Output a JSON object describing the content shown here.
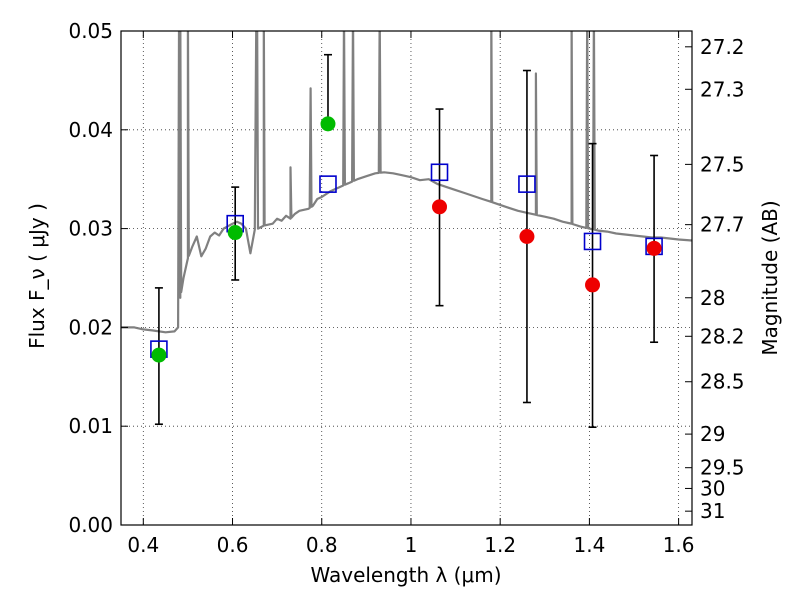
{
  "chart_data": {
    "type": "scatter",
    "xlabel": "Wavelength  λ (μm)",
    "ylabel": "Flux  F_ν  ( μJy )",
    "ylabel_right": "Magnitude (AB)",
    "xlim": [
      0.35,
      1.63
    ],
    "ylim": [
      0.0,
      0.05
    ],
    "grid": true,
    "x_ticks": [
      0.4,
      0.6,
      0.8,
      1.0,
      1.2,
      1.4,
      1.6
    ],
    "x_tick_labels": [
      "0.4",
      "0.6",
      "0.8",
      "1",
      "1.2",
      "1.4",
      "1.6"
    ],
    "y_ticks": [
      0.0,
      0.01,
      0.02,
      0.03,
      0.04,
      0.05
    ],
    "y_tick_labels": [
      "0.00",
      "0.01",
      "0.02",
      "0.03",
      "0.04",
      "0.05"
    ],
    "right_ticks": [
      {
        "label": "27.2",
        "flux": 0.0484
      },
      {
        "label": "27.3",
        "flux": 0.0441
      },
      {
        "label": "27.5",
        "flux": 0.0365
      },
      {
        "label": "27.7",
        "flux": 0.0304
      },
      {
        "label": "28",
        "flux": 0.023
      },
      {
        "label": "28.2",
        "flux": 0.0191
      },
      {
        "label": "28.5",
        "flux": 0.0145
      },
      {
        "label": "29",
        "flux": 0.0092
      },
      {
        "label": "29.5",
        "flux": 0.0058
      },
      {
        "label": "30",
        "flux": 0.0037
      },
      {
        "label": "31",
        "flux": 0.0014
      }
    ],
    "series": [
      {
        "kind": "model_spectrum",
        "color": "#808080",
        "points": [
          [
            0.35,
            0.02
          ],
          [
            0.38,
            0.02
          ],
          [
            0.4,
            0.0198
          ],
          [
            0.42,
            0.0197
          ],
          [
            0.45,
            0.0195
          ],
          [
            0.47,
            0.0196
          ],
          [
            0.478,
            0.02
          ],
          [
            0.48,
            0.05
          ],
          [
            0.483,
            0.023
          ],
          [
            0.49,
            0.025
          ],
          [
            0.5,
            0.027
          ],
          [
            0.51,
            0.0282
          ],
          [
            0.52,
            0.0292
          ],
          [
            0.53,
            0.0272
          ],
          [
            0.54,
            0.028
          ],
          [
            0.55,
            0.0292
          ],
          [
            0.56,
            0.0296
          ],
          [
            0.57,
            0.0293
          ],
          [
            0.58,
            0.03
          ],
          [
            0.6,
            0.0305
          ],
          [
            0.61,
            0.0307
          ],
          [
            0.62,
            0.0305
          ],
          [
            0.63,
            0.03
          ],
          [
            0.64,
            0.0275
          ],
          [
            0.65,
            0.0299
          ],
          [
            0.653,
            0.05
          ],
          [
            0.657,
            0.03
          ],
          [
            0.67,
            0.0303
          ],
          [
            0.69,
            0.0305
          ],
          [
            0.7,
            0.031
          ],
          [
            0.71,
            0.0308
          ],
          [
            0.72,
            0.0313
          ],
          [
            0.73,
            0.031
          ],
          [
            0.74,
            0.0315
          ],
          [
            0.75,
            0.0318
          ],
          [
            0.77,
            0.032
          ],
          [
            0.78,
            0.0323
          ],
          [
            0.79,
            0.033
          ],
          [
            0.8,
            0.0332
          ],
          [
            0.82,
            0.0338
          ],
          [
            0.84,
            0.0342
          ],
          [
            0.86,
            0.0346
          ],
          [
            0.88,
            0.035
          ],
          [
            0.9,
            0.0353
          ],
          [
            0.92,
            0.0356
          ],
          [
            0.94,
            0.0357
          ],
          [
            0.96,
            0.0356
          ],
          [
            0.98,
            0.0354
          ],
          [
            1.0,
            0.0352
          ],
          [
            1.02,
            0.0349
          ],
          [
            1.04,
            0.035
          ],
          [
            1.06,
            0.0345
          ],
          [
            1.08,
            0.0342
          ],
          [
            1.1,
            0.0339
          ],
          [
            1.12,
            0.0336
          ],
          [
            1.14,
            0.0333
          ],
          [
            1.16,
            0.033
          ],
          [
            1.18,
            0.0327
          ],
          [
            1.2,
            0.0324
          ],
          [
            1.22,
            0.0321
          ],
          [
            1.24,
            0.0318
          ],
          [
            1.26,
            0.0316
          ],
          [
            1.28,
            0.0314
          ],
          [
            1.3,
            0.0312
          ],
          [
            1.32,
            0.031
          ],
          [
            1.34,
            0.0307
          ],
          [
            1.36,
            0.0305
          ],
          [
            1.38,
            0.0302
          ],
          [
            1.4,
            0.03
          ],
          [
            1.42,
            0.0298
          ],
          [
            1.44,
            0.0297
          ],
          [
            1.46,
            0.0295
          ],
          [
            1.48,
            0.0294
          ],
          [
            1.5,
            0.0293
          ],
          [
            1.52,
            0.0292
          ],
          [
            1.54,
            0.0291
          ],
          [
            1.56,
            0.0291
          ],
          [
            1.58,
            0.029
          ],
          [
            1.6,
            0.0289
          ],
          [
            1.63,
            0.0288
          ]
        ],
        "emission_lines": [
          {
            "x": 0.483,
            "peak": 0.05
          },
          {
            "x": 0.5,
            "peak": 0.05
          },
          {
            "x": 0.655,
            "peak": 0.05
          },
          {
            "x": 0.67,
            "peak": 0.05
          },
          {
            "x": 0.73,
            "peak": 0.0342
          },
          {
            "x": 0.775,
            "peak": 0.0422
          },
          {
            "x": 0.85,
            "peak": 0.05
          },
          {
            "x": 0.87,
            "peak": 0.05
          },
          {
            "x": 0.93,
            "peak": 0.05
          },
          {
            "x": 1.18,
            "peak": 0.05
          },
          {
            "x": 1.28,
            "peak": 0.0437
          },
          {
            "x": 1.36,
            "peak": 0.05
          },
          {
            "x": 1.395,
            "peak": 0.05
          },
          {
            "x": 1.41,
            "peak": 0.05
          }
        ]
      },
      {
        "kind": "model_band_flux",
        "marker": "open-square",
        "color": "#0000cc",
        "x": [
          0.435,
          0.606,
          0.814,
          1.064,
          1.26,
          1.407,
          1.545
        ],
        "y": [
          0.0178,
          0.0305,
          0.0345,
          0.0357,
          0.0345,
          0.0287,
          0.0282
        ]
      },
      {
        "kind": "observed_detection",
        "marker": "circle",
        "color": "#00bb00",
        "x": [
          0.435,
          0.606,
          0.814
        ],
        "y": [
          0.0172,
          0.0296,
          0.0406
        ],
        "yerr_low": [
          0.0102,
          0.0248,
          0.0406
        ],
        "yerr_high": [
          0.024,
          0.0342,
          0.0476
        ]
      },
      {
        "kind": "observed_other",
        "marker": "circle",
        "color": "#ee0000",
        "x": [
          1.064,
          1.26,
          1.407,
          1.545
        ],
        "y": [
          0.0322,
          0.0292,
          0.0243,
          0.028
        ],
        "yerr_low": [
          0.0222,
          0.0124,
          0.0099,
          0.0185
        ],
        "yerr_high": [
          0.0421,
          0.046,
          0.0386,
          0.0374
        ]
      }
    ]
  }
}
